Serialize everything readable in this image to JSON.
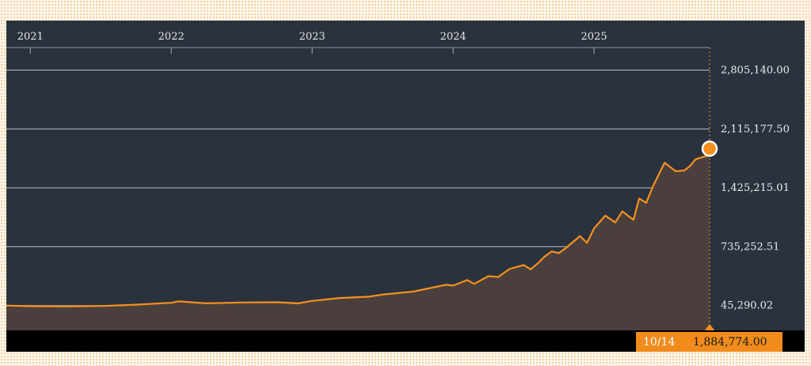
{
  "chart_data": {
    "type": "area",
    "years": [
      "2021",
      "2022",
      "2023",
      "2024",
      "2025"
    ],
    "yticks": [
      "2,805,140.00",
      "2,115,177.50",
      "1,425,215.01",
      "735,252.51",
      "45,290.02"
    ],
    "ytick_values": [
      2805140.0,
      2115177.5,
      1425215.01,
      735252.51,
      45290.02
    ],
    "ylim": [
      -245000,
      3070000
    ],
    "xlim": [
      2020.83,
      2025.82
    ],
    "grid": true,
    "colors": {
      "line": "#f5901e",
      "area": "#4a3f3c",
      "background": "#2a323e",
      "grid": "#d8d8d8"
    },
    "points": [
      [
        2020.83,
        45300
      ],
      [
        2021.0,
        38000
      ],
      [
        2021.25,
        35000
      ],
      [
        2021.5,
        40000
      ],
      [
        2021.75,
        56000
      ],
      [
        2022.0,
        78000
      ],
      [
        2022.05,
        95000
      ],
      [
        2022.25,
        72000
      ],
      [
        2022.5,
        82000
      ],
      [
        2022.75,
        85000
      ],
      [
        2022.9,
        72000
      ],
      [
        2023.0,
        100000
      ],
      [
        2023.2,
        135000
      ],
      [
        2023.4,
        150000
      ],
      [
        2023.5,
        175000
      ],
      [
        2023.72,
        210000
      ],
      [
        2023.95,
        290000
      ],
      [
        2024.0,
        280000
      ],
      [
        2024.1,
        345000
      ],
      [
        2024.15,
        300000
      ],
      [
        2024.25,
        390000
      ],
      [
        2024.32,
        380000
      ],
      [
        2024.4,
        475000
      ],
      [
        2024.5,
        520000
      ],
      [
        2024.55,
        470000
      ],
      [
        2024.6,
        540000
      ],
      [
        2024.65,
        620000
      ],
      [
        2024.7,
        680000
      ],
      [
        2024.75,
        660000
      ],
      [
        2024.8,
        720000
      ],
      [
        2024.9,
        860000
      ],
      [
        2024.95,
        780000
      ],
      [
        2025.0,
        950000
      ],
      [
        2025.08,
        1100000
      ],
      [
        2025.15,
        1020000
      ],
      [
        2025.2,
        1150000
      ],
      [
        2025.28,
        1050000
      ],
      [
        2025.32,
        1300000
      ],
      [
        2025.37,
        1250000
      ],
      [
        2025.42,
        1450000
      ],
      [
        2025.5,
        1720000
      ],
      [
        2025.58,
        1620000
      ],
      [
        2025.64,
        1630000
      ],
      [
        2025.68,
        1680000
      ],
      [
        2025.72,
        1760000
      ],
      [
        2025.76,
        1780000
      ],
      [
        2025.8,
        1800000
      ],
      [
        2025.82,
        1884774
      ]
    ]
  },
  "readout": {
    "date": "10/14",
    "value": "1,884,774.00"
  }
}
